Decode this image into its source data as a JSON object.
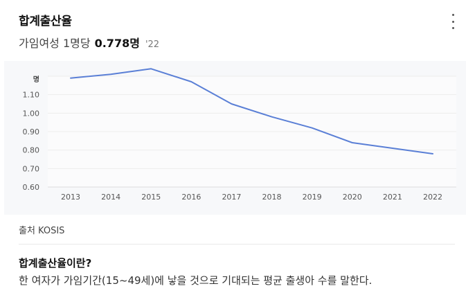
{
  "header": {
    "title": "합계출산율",
    "metric_label": "가임여성 1명당",
    "value": "0.778명",
    "year": "'22"
  },
  "source": {
    "text": "출처 KOSIS"
  },
  "definition": {
    "question": "합계출산율이란?",
    "text": "한 여자가 가임기간(15~49세)에 낳을 것으로 기대되는 평균 출생아 수를 말한다."
  },
  "colors": {
    "line": "#5a7fd6",
    "panel": "#f7f8fa",
    "grid": "#ffffff"
  },
  "chart_data": {
    "type": "line",
    "unit_label": "명",
    "categories": [
      "2013",
      "2014",
      "2015",
      "2016",
      "2017",
      "2018",
      "2019",
      "2020",
      "2021",
      "2022"
    ],
    "values": [
      1.19,
      1.21,
      1.24,
      1.17,
      1.05,
      0.98,
      0.92,
      0.84,
      0.81,
      0.78
    ],
    "ylim": [
      0.6,
      1.2
    ],
    "yticks": [
      "0.60",
      "0.70",
      "0.80",
      "0.90",
      "1.00",
      "1.10"
    ],
    "grid": true
  }
}
